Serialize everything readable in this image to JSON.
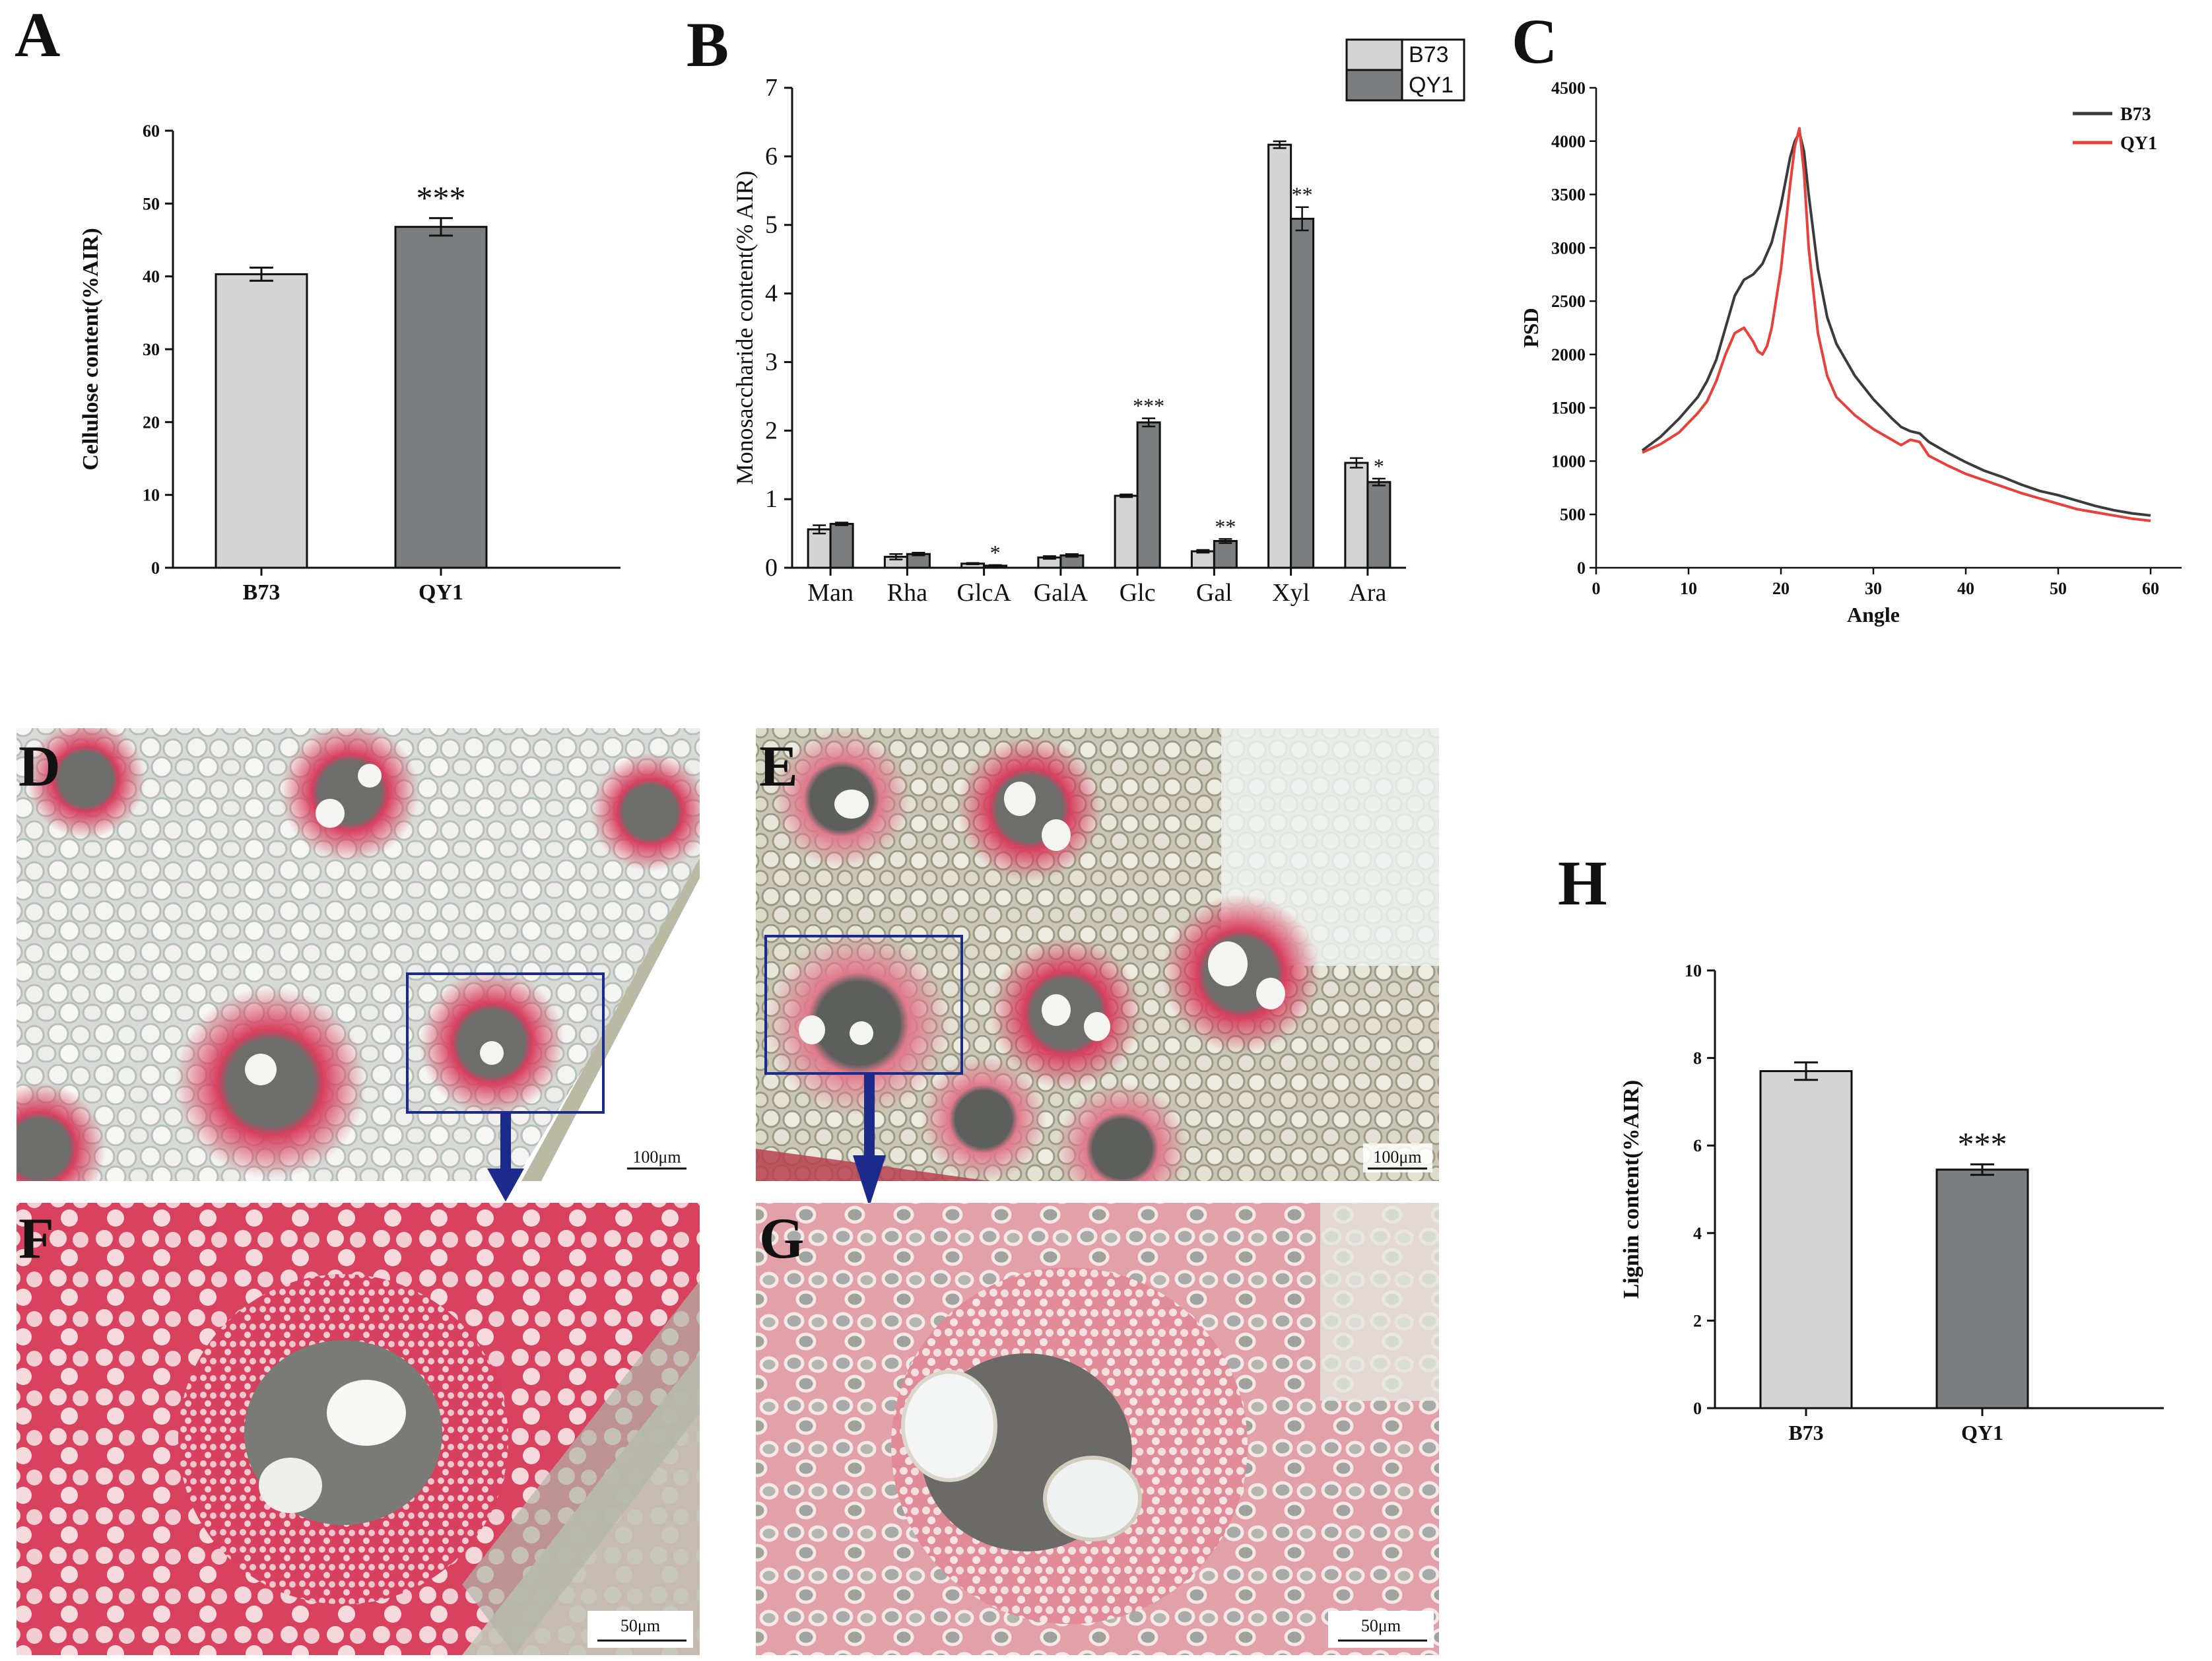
{
  "colors": {
    "b73_bar": "#d4d4d4",
    "qy1_bar": "#7b7d80",
    "xrd_b73": "#3b3b3b",
    "xrd_qy1": "#e8413b",
    "box": "#1c2a8c",
    "arrow": "#1c2a8c",
    "stain_red": "#d8506c"
  },
  "panels": {
    "a": "A",
    "b": "B",
    "c": "C",
    "d": "D",
    "e": "E",
    "f": "F",
    "g": "G",
    "h": "H"
  },
  "micrographs": {
    "d": {
      "scale_label": "100μm"
    },
    "e": {
      "scale_label": "100μm"
    },
    "f": {
      "scale_label": "50μm"
    },
    "g": {
      "scale_label": "50μm"
    }
  },
  "chart_data": [
    {
      "id": "A",
      "type": "bar",
      "title": "",
      "categories": [
        "B73",
        "QY1"
      ],
      "values": [
        40.3,
        46.8
      ],
      "errors": [
        0.9,
        1.2
      ],
      "significance": [
        "",
        "***"
      ],
      "xlabel": "",
      "ylabel": "Cellulose content(%AIR)",
      "ylim": [
        0,
        60
      ],
      "yticks": [
        0,
        10,
        20,
        30,
        40,
        50,
        60
      ]
    },
    {
      "id": "B",
      "type": "bar",
      "title": "",
      "categories": [
        "Man",
        "Rha",
        "GlcA",
        "GalA",
        "Glc",
        "Gal",
        "Xyl",
        "Ara"
      ],
      "series": [
        {
          "name": "B73",
          "values": [
            0.56,
            0.16,
            0.06,
            0.15,
            1.05,
            0.24,
            6.17,
            1.53
          ],
          "errors": [
            0.06,
            0.04,
            0.01,
            0.02,
            0.02,
            0.02,
            0.05,
            0.07
          ]
        },
        {
          "name": "QY1",
          "values": [
            0.64,
            0.2,
            0.03,
            0.18,
            2.12,
            0.39,
            5.09,
            1.25
          ],
          "errors": [
            0.02,
            0.02,
            0.01,
            0.02,
            0.06,
            0.03,
            0.17,
            0.05
          ]
        }
      ],
      "significance": [
        "",
        "",
        "*",
        "",
        "***",
        "**",
        "**",
        "*"
      ],
      "xlabel": "",
      "ylabel": "Monosaccharide content(% AIR)",
      "ylim": [
        0,
        7
      ],
      "yticks": [
        0,
        1,
        2,
        3,
        4,
        5,
        6,
        7
      ],
      "legend": [
        "B73",
        "QY1"
      ],
      "legend_position": "top-right"
    },
    {
      "id": "C",
      "type": "line",
      "title": "",
      "xlabel": "Angle",
      "ylabel": "PSD",
      "xlim": [
        0,
        60
      ],
      "ylim": [
        0,
        4500
      ],
      "xticks": [
        0,
        10,
        20,
        30,
        40,
        50,
        60
      ],
      "yticks": [
        0,
        500,
        1000,
        1500,
        2000,
        2500,
        3000,
        3500,
        4000,
        4500
      ],
      "legend": [
        "B73",
        "QY1"
      ],
      "legend_position": "top-right",
      "series": [
        {
          "name": "B73",
          "x": [
            5,
            7,
            9,
            11,
            12,
            13,
            14,
            15,
            16,
            17,
            18,
            19,
            20,
            21,
            21.5,
            22,
            22.5,
            23,
            24,
            25,
            26,
            28,
            30,
            32,
            33,
            34,
            35,
            36,
            38,
            40,
            42,
            44,
            46,
            48,
            50,
            52,
            54,
            56,
            58,
            60
          ],
          "y": [
            1100,
            1230,
            1400,
            1600,
            1750,
            1950,
            2250,
            2550,
            2700,
            2750,
            2850,
            3050,
            3400,
            3850,
            4000,
            4080,
            3900,
            3500,
            2800,
            2350,
            2100,
            1800,
            1580,
            1400,
            1320,
            1280,
            1260,
            1180,
            1080,
            990,
            910,
            850,
            780,
            720,
            680,
            630,
            580,
            540,
            510,
            490
          ]
        },
        {
          "name": "QY1",
          "x": [
            5,
            7,
            9,
            11,
            12,
            13,
            14,
            15,
            16,
            17,
            17.5,
            18,
            18.5,
            19,
            20,
            21,
            21.5,
            22,
            22.5,
            23,
            24,
            25,
            26,
            28,
            30,
            32,
            33,
            34,
            35,
            36,
            38,
            40,
            42,
            44,
            46,
            48,
            50,
            52,
            54,
            56,
            58,
            60
          ],
          "y": [
            1080,
            1160,
            1270,
            1450,
            1560,
            1750,
            2000,
            2200,
            2250,
            2120,
            2030,
            2000,
            2080,
            2250,
            2800,
            3600,
            3950,
            4120,
            3700,
            3000,
            2200,
            1800,
            1600,
            1430,
            1300,
            1200,
            1150,
            1200,
            1180,
            1050,
            960,
            880,
            820,
            760,
            700,
            650,
            600,
            550,
            520,
            490,
            460,
            440
          ]
        }
      ]
    },
    {
      "id": "H",
      "type": "bar",
      "title": "",
      "categories": [
        "B73",
        "QY1"
      ],
      "values": [
        7.7,
        5.45
      ],
      "errors": [
        0.2,
        0.12
      ],
      "significance": [
        "",
        "***"
      ],
      "xlabel": "",
      "ylabel": "Lignin content(%AIR)",
      "ylim": [
        0,
        10
      ],
      "yticks": [
        0,
        2,
        4,
        6,
        8,
        10
      ]
    }
  ]
}
